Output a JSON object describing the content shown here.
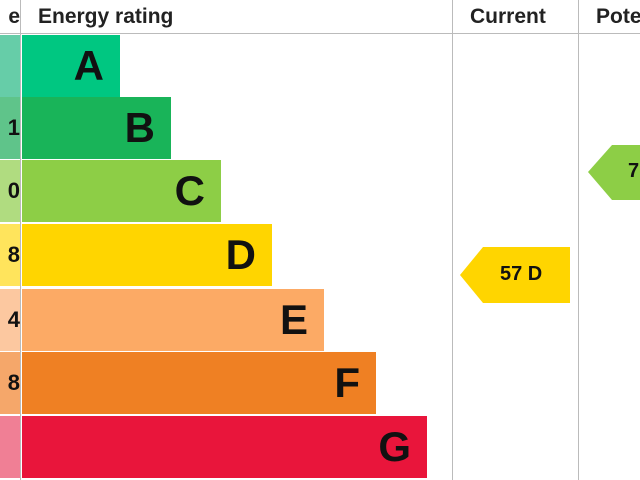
{
  "header": {
    "score_partial": "e",
    "rating": "Energy rating",
    "current": "Current",
    "potential_partial": "Pote"
  },
  "chart_data": {
    "type": "bar",
    "categories": [
      "A",
      "B",
      "C",
      "D",
      "E",
      "F",
      "G"
    ],
    "score_partial": [
      "",
      "1",
      "0",
      "8",
      "4",
      "8",
      ""
    ],
    "colors": [
      "#00c781",
      "#19b459",
      "#8dce46",
      "#ffd500",
      "#fcaa65",
      "#ef8023",
      "#e9153b"
    ],
    "score_colors": [
      "#66cda8",
      "#5fc48a",
      "#b0dc80",
      "#ffe45c",
      "#fcc8a0",
      "#f5a76a",
      "#f07f95"
    ],
    "current": {
      "value": 57,
      "band": "D",
      "label": "57 D",
      "color": "#ffd500"
    },
    "potential": {
      "label_partial": "7",
      "band": "C",
      "color": "#8dce46"
    }
  }
}
